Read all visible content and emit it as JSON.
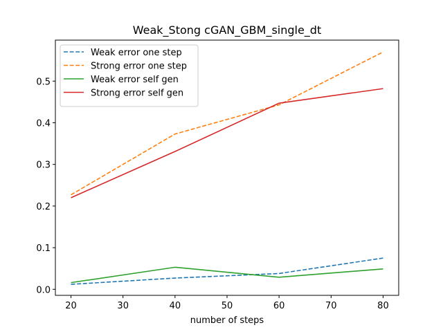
{
  "chart_data": {
    "type": "line",
    "title": "Weak_Stong cGAN_GBM_single_dt",
    "xlabel": "number of steps",
    "ylabel": "",
    "x": [
      20,
      40,
      60,
      80
    ],
    "xlim": [
      17,
      83
    ],
    "ylim": [
      -0.0145,
      0.5985
    ],
    "xticks": [
      20,
      30,
      40,
      50,
      60,
      70,
      80
    ],
    "yticks": [
      0.0,
      0.1,
      0.2,
      0.3,
      0.4,
      0.5
    ],
    "grid": false,
    "legend_position": "top-left",
    "series": [
      {
        "name": "Weak error one step",
        "values": [
          0.012,
          0.027,
          0.038,
          0.075
        ],
        "color": "#1f77b4",
        "dashed": true
      },
      {
        "name": "Strong error one step",
        "values": [
          0.227,
          0.373,
          0.443,
          0.57
        ],
        "color": "#ff7f0e",
        "dashed": true
      },
      {
        "name": "Weak error self gen",
        "values": [
          0.016,
          0.053,
          0.029,
          0.049
        ],
        "color": "#2ca02c",
        "dashed": false
      },
      {
        "name": "Strong error self gen",
        "values": [
          0.22,
          0.331,
          0.447,
          0.482
        ],
        "color": "#d62728",
        "dashed": false
      }
    ]
  }
}
